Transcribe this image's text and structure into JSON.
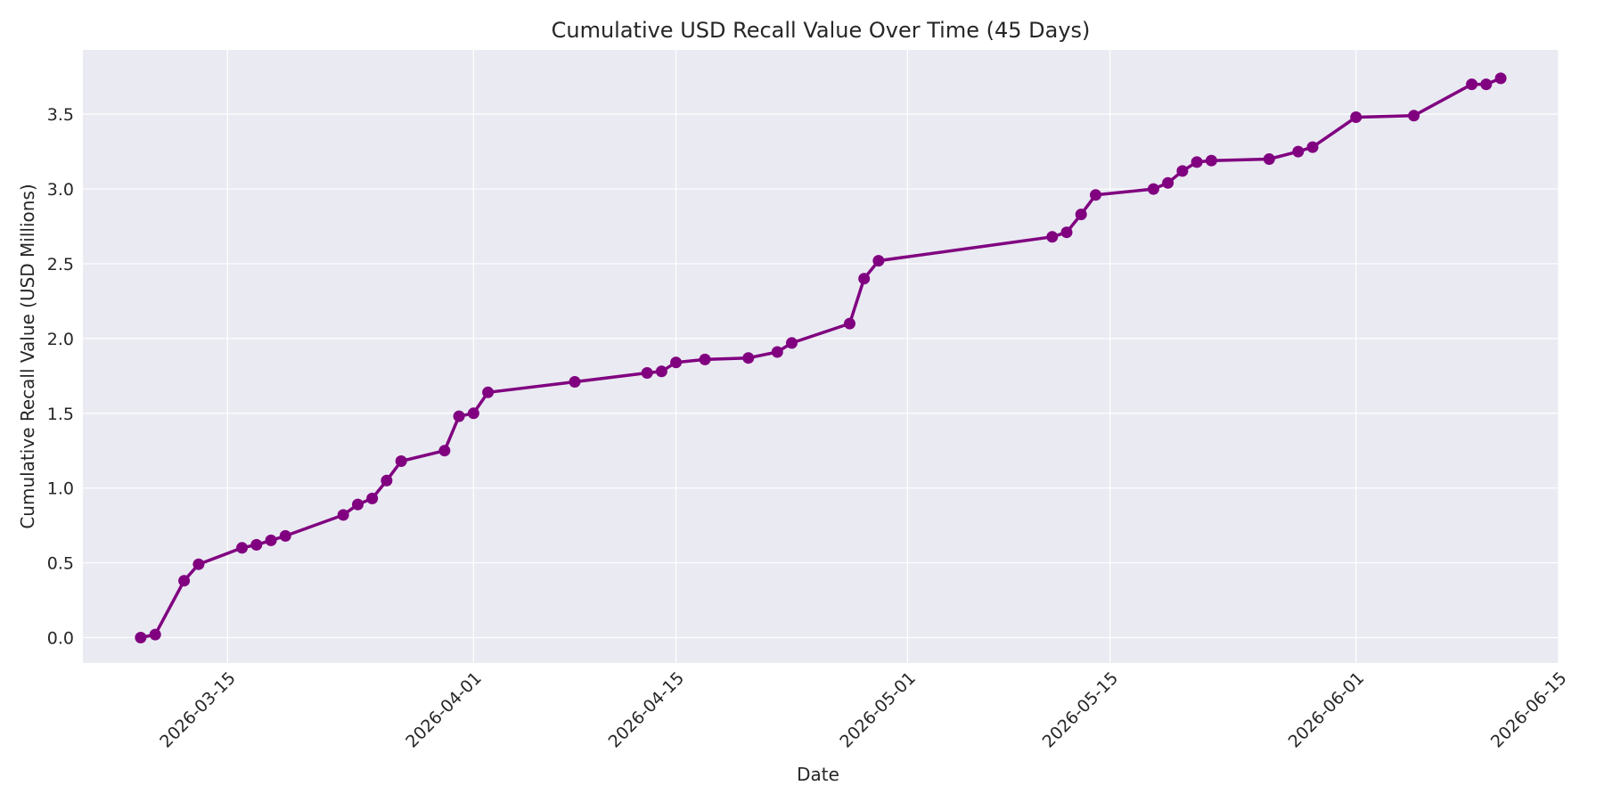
{
  "chart_data": {
    "type": "line",
    "title": "Cumulative USD Recall Value Over Time (45 Days)",
    "xlabel": "Date",
    "ylabel": "Cumulative Recall Value (USD Millions)",
    "x_tick_labels": [
      "2026-03-15",
      "2026-04-01",
      "2026-04-15",
      "2026-05-01",
      "2026-05-15",
      "2026-06-01",
      "2026-06-15"
    ],
    "y_tick_labels": [
      "0.0",
      "0.5",
      "1.0",
      "1.5",
      "2.0",
      "2.5",
      "3.0",
      "3.5"
    ],
    "xlim": [
      "2026-03-05",
      "2026-06-15"
    ],
    "ylim": [
      -0.17,
      3.93
    ],
    "grid": true,
    "series": [
      {
        "color": "#800080",
        "marker": "circle",
        "x": [
          "2026-03-09",
          "2026-03-10",
          "2026-03-12",
          "2026-03-13",
          "2026-03-16",
          "2026-03-17",
          "2026-03-18",
          "2026-03-19",
          "2026-03-23",
          "2026-03-24",
          "2026-03-25",
          "2026-03-26",
          "2026-03-27",
          "2026-03-30",
          "2026-03-31",
          "2026-04-01",
          "2026-04-02",
          "2026-04-08",
          "2026-04-13",
          "2026-04-14",
          "2026-04-15",
          "2026-04-17",
          "2026-04-20",
          "2026-04-22",
          "2026-04-23",
          "2026-04-27",
          "2026-04-28",
          "2026-04-29",
          "2026-05-11",
          "2026-05-12",
          "2026-05-13",
          "2026-05-14",
          "2026-05-18",
          "2026-05-19",
          "2026-05-20",
          "2026-05-21",
          "2026-05-22",
          "2026-05-26",
          "2026-05-28",
          "2026-05-29",
          "2026-06-01",
          "2026-06-05",
          "2026-06-09",
          "2026-06-10",
          "2026-06-11"
        ],
        "y": [
          0.0,
          0.02,
          0.38,
          0.49,
          0.6,
          0.62,
          0.65,
          0.68,
          0.82,
          0.89,
          0.93,
          1.05,
          1.18,
          1.25,
          1.48,
          1.5,
          1.64,
          1.71,
          1.77,
          1.78,
          1.84,
          1.86,
          1.87,
          1.91,
          1.97,
          2.1,
          2.4,
          2.52,
          2.68,
          2.71,
          2.83,
          2.96,
          3.0,
          3.04,
          3.12,
          3.18,
          3.19,
          3.2,
          3.25,
          3.28,
          3.48,
          3.49,
          3.7,
          3.7,
          3.74
        ]
      }
    ]
  }
}
